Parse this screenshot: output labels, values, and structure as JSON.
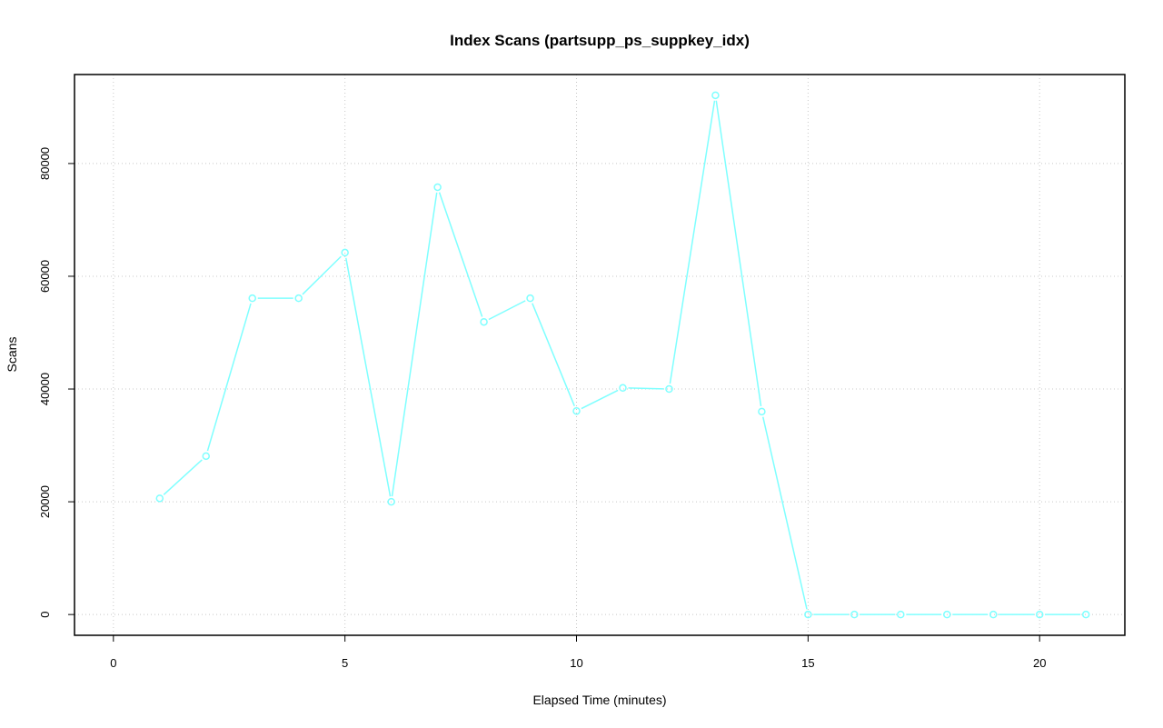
{
  "chart_data": {
    "type": "line",
    "title": "Index Scans (partsupp_ps_suppkey_idx)",
    "xlabel": "Elapsed Time (minutes)",
    "ylabel": "Scans",
    "xlim": [
      0,
      21
    ],
    "ylim": [
      0,
      92100
    ],
    "x_ticks": [
      0,
      5,
      10,
      15,
      20
    ],
    "y_ticks": [
      0,
      20000,
      40000,
      60000,
      80000
    ],
    "x_tick_labels": [
      "0",
      "5",
      "10",
      "15",
      "20"
    ],
    "y_tick_labels": [
      "0",
      "20000",
      "40000",
      "60000",
      "80000"
    ],
    "grid": true,
    "series": [
      {
        "color": "#7fffff",
        "marker": "open-circle",
        "x": [
          1,
          2,
          3,
          4,
          5,
          6,
          7,
          8,
          9,
          10,
          11,
          12,
          13,
          14,
          15,
          16,
          17,
          18,
          19,
          20,
          21
        ],
        "y": [
          20600,
          28100,
          56100,
          56100,
          64200,
          20000,
          75800,
          51900,
          56100,
          36100,
          40200,
          40000,
          92100,
          36000,
          0,
          0,
          0,
          0,
          0,
          0,
          0
        ]
      }
    ]
  }
}
